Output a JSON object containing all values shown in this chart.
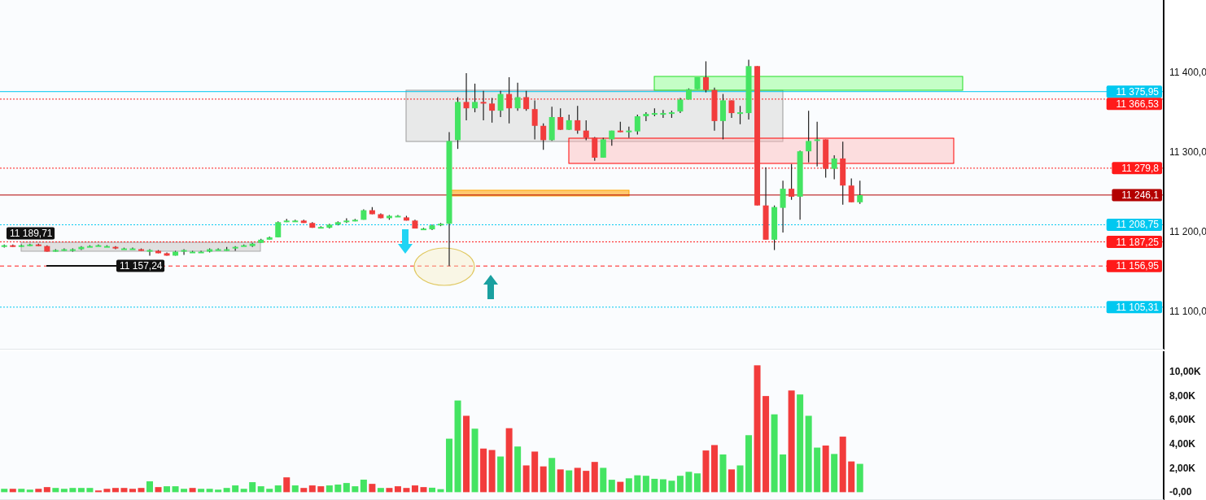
{
  "chart_data": [
    {
      "type": "candlestick",
      "categories": [
        null,
        null,
        null,
        null,
        null,
        null,
        null,
        null,
        null,
        null,
        null,
        null,
        null,
        null,
        null,
        null,
        null,
        null,
        null,
        null,
        null,
        null,
        null,
        null,
        null,
        null,
        null,
        null,
        null,
        null,
        null,
        null,
        null,
        null,
        null,
        null,
        null,
        null,
        null,
        null,
        null,
        null,
        null,
        null,
        null,
        null,
        null,
        null,
        null,
        null,
        null,
        null,
        null,
        null,
        null,
        null,
        null,
        null,
        null,
        null,
        null,
        null,
        null,
        null,
        null,
        null,
        null,
        null,
        null,
        null,
        null,
        null,
        null,
        null,
        null,
        null,
        null,
        null,
        null,
        null,
        null,
        null,
        null,
        null,
        null,
        null,
        null,
        null,
        null,
        null,
        null,
        null,
        null,
        null,
        null,
        null,
        null,
        null,
        null,
        null,
        null,
        null,
        null,
        null,
        null,
        null,
        null,
        null,
        null,
        null,
        null,
        null,
        null,
        null,
        null,
        null,
        null,
        null,
        null,
        null,
        null,
        null,
        null,
        null,
        null,
        null,
        null,
        null,
        null,
        null,
        null,
        null,
        null,
        null,
        null,
        null
      ],
      "ohlc": [
        [
          11182,
          11184,
          11180,
          11183
        ],
        [
          11183,
          11184,
          11181,
          11182
        ],
        [
          11182,
          11184,
          11181,
          11183
        ],
        [
          11183,
          11185,
          11182,
          11184
        ],
        [
          11184,
          11185,
          11182,
          11182
        ],
        [
          11182,
          11183,
          11175,
          11175
        ],
        [
          11176,
          11178,
          11175,
          11177
        ],
        [
          11177,
          11179,
          11176,
          11178
        ],
        [
          11176,
          11179,
          11175,
          11178
        ],
        [
          11178,
          11182,
          11177,
          11181
        ],
        [
          11181,
          11183,
          11181,
          11182
        ],
        [
          11183,
          11184,
          11182,
          11183
        ],
        [
          11182,
          11183,
          11181,
          11182
        ],
        [
          11181,
          11182,
          11178,
          11179
        ],
        [
          11179,
          11180,
          11178,
          11179
        ],
        [
          11179,
          11180,
          11178,
          11179
        ],
        [
          11178,
          11179,
          11176,
          11176
        ],
        [
          11177,
          11178,
          11170,
          11177
        ],
        [
          11176,
          11177,
          11173,
          11173
        ],
        [
          11173,
          11174,
          11170,
          11170
        ],
        [
          11170,
          11176,
          11170,
          11175
        ],
        [
          11177,
          11178,
          11171,
          11177
        ],
        [
          11175,
          11176,
          11174,
          11175
        ],
        [
          11175,
          11176,
          11174,
          11175
        ],
        [
          11175,
          11179,
          11174,
          11178
        ],
        [
          11178,
          11179,
          11177,
          11178
        ],
        [
          11178,
          11181,
          11176,
          11178
        ],
        [
          11179,
          11182,
          11176,
          11181
        ],
        [
          11183,
          11184,
          11182,
          11183
        ],
        [
          11182,
          11186,
          11181,
          11185
        ],
        [
          11186,
          11191,
          11186,
          11190
        ],
        [
          11190,
          11194,
          11190,
          11193
        ],
        [
          11193,
          11213,
          11193,
          11212
        ],
        [
          11214,
          11216,
          11212,
          11214
        ],
        [
          11214,
          11215,
          11213,
          11214
        ],
        [
          11214,
          11215,
          11211,
          11211
        ],
        [
          11211,
          11212,
          11205,
          11205
        ],
        [
          11206,
          11207,
          11205,
          11206
        ],
        [
          11205,
          11210,
          11204,
          11209
        ],
        [
          11209,
          11213,
          11208,
          11212
        ],
        [
          11212,
          11217,
          11211,
          11214
        ],
        [
          11215,
          11216,
          11213,
          11215
        ],
        [
          11215,
          11228,
          11215,
          11227
        ],
        [
          11227,
          11231,
          11222,
          11222
        ],
        [
          11222,
          11223,
          11217,
          11217
        ],
        [
          11217,
          11221,
          11215,
          11220
        ],
        [
          11220,
          11221,
          11219,
          11220
        ],
        [
          11218,
          11220,
          11214,
          11214
        ],
        [
          11214,
          11215,
          11204,
          11204
        ],
        [
          11204,
          11205,
          11203,
          11204
        ],
        [
          11203,
          11209,
          11202,
          11208
        ],
        [
          11208,
          11211,
          11207,
          11210
        ],
        [
          11210,
          11325,
          11157,
          11314
        ],
        [
          11315,
          11369,
          11304,
          11363
        ],
        [
          11363,
          11399,
          11340,
          11355
        ],
        [
          11355,
          11386,
          11350,
          11363
        ],
        [
          11363,
          11377,
          11340,
          11361
        ],
        [
          11361,
          11368,
          11337,
          11352
        ],
        [
          11352,
          11377,
          11344,
          11373
        ],
        [
          11373,
          11394,
          11336,
          11355
        ],
        [
          11355,
          11387,
          11352,
          11369
        ],
        [
          11369,
          11377,
          11352,
          11354
        ],
        [
          11354,
          11365,
          11316,
          11333
        ],
        [
          11333,
          11336,
          11303,
          11315
        ],
        [
          11315,
          11357,
          11314,
          11344
        ],
        [
          11344,
          11355,
          11328,
          11328
        ],
        [
          11328,
          11347,
          11328,
          11340
        ],
        [
          11340,
          11358,
          11323,
          11327
        ],
        [
          11327,
          11340,
          11315,
          11318
        ],
        [
          11318,
          11319,
          11289,
          11293
        ],
        [
          11293,
          11318,
          11293,
          11316
        ],
        [
          11316,
          11327,
          11308,
          11327
        ],
        [
          11327,
          11338,
          11325,
          11325
        ],
        [
          11326,
          11332,
          11318,
          11327
        ],
        [
          11326,
          11347,
          11322,
          11345
        ],
        [
          11345,
          11350,
          11339,
          11348
        ],
        [
          11348,
          11355,
          11345,
          11349
        ],
        [
          11349,
          11353,
          11343,
          11349
        ],
        [
          11348,
          11352,
          11343,
          11350
        ],
        [
          11351,
          11368,
          11349,
          11366
        ],
        [
          11366,
          11380,
          11366,
          11379
        ],
        [
          11379,
          11394,
          11379,
          11394
        ],
        [
          11394,
          11414,
          11375,
          11378
        ],
        [
          11378,
          11381,
          11327,
          11339
        ],
        [
          11339,
          11373,
          11316,
          11365
        ],
        [
          11365,
          11365,
          11343,
          11349
        ],
        [
          11349,
          11358,
          11335,
          11350
        ],
        [
          11349,
          11416,
          11341,
          11408
        ],
        [
          11408,
          11408,
          11233,
          11233
        ],
        [
          11233,
          11281,
          11190,
          11190
        ],
        [
          11190,
          11233,
          11177,
          11231
        ],
        [
          11230,
          11264,
          11199,
          11254
        ],
        [
          11254,
          11285,
          11240,
          11244
        ],
        [
          11244,
          11302,
          11215,
          11301
        ],
        [
          11301,
          11352,
          11287,
          11314
        ],
        [
          11314,
          11338,
          11282,
          11316
        ],
        [
          11316,
          11316,
          11268,
          11279
        ],
        [
          11279,
          11296,
          11266,
          11292
        ],
        [
          11292,
          11313,
          11234,
          11258
        ],
        [
          11258,
          11267,
          11237,
          11237
        ],
        [
          11237,
          11264,
          11235,
          11246
        ],
        null,
        null,
        null,
        null,
        null,
        null,
        null,
        null,
        null,
        null,
        null,
        null,
        null,
        null,
        null,
        null,
        null,
        null,
        null,
        null,
        null,
        null,
        null,
        null,
        null,
        null,
        null,
        null,
        null,
        null,
        null,
        null,
        null,
        null,
        null
      ],
      "colors": [
        "#44e462",
        "#f23c3c",
        "#44e462",
        "#44e462",
        "#f23c3c",
        "#f23c3c",
        "#44e462",
        "#44e462",
        "#44e462",
        "#44e462",
        "#44e462",
        "#44e462",
        "#44e462",
        "#f23c3c",
        "#44e462",
        "#44e462",
        "#f23c3c",
        "#44e462",
        "#f23c3c",
        "#f23c3c",
        "#44e462",
        "#44e462",
        "#44e462",
        "#44e462",
        "#44e462",
        "#44e462",
        "#44e462",
        "#44e462",
        "#44e462",
        "#44e462",
        "#44e462",
        "#44e462",
        "#44e462",
        "#44e462",
        "#44e462",
        "#f23c3c",
        "#f23c3c",
        "#44e462",
        "#44e462",
        "#44e462",
        "#44e462",
        "#44e462",
        "#44e462",
        "#f23c3c",
        "#f23c3c",
        "#44e462",
        "#44e462",
        "#f23c3c",
        "#f23c3c",
        "#44e462",
        "#44e462",
        "#44e462",
        "#44e462",
        "#44e462",
        "#f23c3c",
        "#44e462",
        "#f23c3c",
        "#f23c3c",
        "#44e462",
        "#f23c3c",
        "#44e462",
        "#f23c3c",
        "#f23c3c",
        "#f23c3c",
        "#44e462",
        "#f23c3c",
        "#44e462",
        "#f23c3c",
        "#f23c3c",
        "#f23c3c",
        "#44e462",
        "#44e462",
        "#f23c3c",
        "#44e462",
        "#44e462",
        "#44e462",
        "#44e462",
        "#44e462",
        "#44e462",
        "#44e462",
        "#44e462",
        "#44e462",
        "#f23c3c",
        "#f23c3c",
        "#44e462",
        "#f23c3c",
        "#44e462",
        "#44e462",
        "#f23c3c",
        "#f23c3c",
        "#44e462",
        "#44e462",
        "#f23c3c",
        "#44e462",
        "#44e462",
        "#44e462",
        "#f23c3c",
        "#44e462",
        "#f23c3c",
        "#f23c3c",
        "#44e462",
        null,
        null,
        null,
        null,
        null,
        null,
        null,
        null,
        null,
        null,
        null,
        null,
        null,
        null,
        null,
        null,
        null,
        null,
        null,
        null,
        null,
        null,
        null,
        null,
        null,
        null,
        null,
        null,
        null,
        null,
        null,
        null,
        null,
        null,
        null
      ],
      "ylim": [
        11052,
        11491
      ],
      "yticks": [
        {
          "value": 11100,
          "label": "11 100,0"
        },
        {
          "value": 11200,
          "label": "11 200,0"
        },
        {
          "value": 11300,
          "label": "11 300,0"
        },
        {
          "value": 11400,
          "label": "11 400,0"
        }
      ],
      "ref_lines": [
        {
          "axis": "y",
          "value": 11375.95,
          "label": "11 375,95",
          "color": "#00c8f0",
          "line_style": "solid"
        },
        {
          "axis": "y",
          "value": 11366.53,
          "label": "11 366,53",
          "color": "#ff1a1a",
          "line_style": "dotted"
        },
        {
          "axis": "y",
          "value": 11279.8,
          "label": "11 279,8",
          "color": "#ff1a1a",
          "line_style": "dotted"
        },
        {
          "axis": "y",
          "value": 11246.1,
          "label": "11 246,1",
          "color": "#b30000",
          "line_style": "solid"
        },
        {
          "axis": "y",
          "value": 11208.75,
          "label": "11 208,75",
          "color": "#00c8f0",
          "line_style": "dotted"
        },
        {
          "axis": "y",
          "value": 11187.25,
          "label": "11 187,25",
          "color": "#ff1a1a",
          "line_style": "dotted"
        },
        {
          "axis": "y",
          "value": 11156.95,
          "label": "11 156,95",
          "color": "#ff1a1a",
          "line_style": "dashed"
        },
        {
          "axis": "y",
          "value": 11105.31,
          "label": "11 105,31",
          "color": "#00c8f0",
          "line_style": "dotted"
        }
      ],
      "annotations": [
        {
          "text": "11 189,71",
          "y": 11189.71
        },
        {
          "text": "11 157,24",
          "y": 11157.24
        }
      ]
    },
    {
      "type": "bar",
      "categories": [
        null,
        null,
        null,
        null,
        null,
        null,
        null,
        null,
        null,
        null,
        null,
        null,
        null,
        null,
        null,
        null,
        null,
        null,
        null,
        null,
        null,
        null,
        null,
        null,
        null,
        null,
        null,
        null,
        null,
        null,
        null,
        null,
        null,
        null,
        null,
        null,
        null,
        null,
        null,
        null,
        null,
        null,
        null,
        null,
        null,
        null,
        null,
        null,
        null,
        null,
        null,
        null,
        null,
        null,
        null,
        null,
        null,
        null,
        null,
        null,
        null,
        null,
        null,
        null,
        null,
        null,
        null,
        null,
        null,
        null,
        null,
        null,
        null,
        null,
        null,
        null,
        null,
        null,
        null,
        null,
        null,
        null,
        null,
        null,
        null,
        null,
        null,
        null,
        null,
        null,
        null,
        null,
        null,
        null,
        null,
        null,
        null,
        null,
        null,
        null,
        null,
        null,
        null,
        null,
        null,
        null,
        null,
        null,
        null,
        null,
        null,
        null,
        null,
        null,
        null,
        null,
        null,
        null,
        null,
        null,
        null,
        null,
        null,
        null,
        null,
        null,
        null,
        null,
        null,
        null,
        null,
        null,
        null,
        null,
        null,
        null
      ],
      "values": [
        0.28,
        0.28,
        0.28,
        0.21,
        0.28,
        0.42,
        0.35,
        0.28,
        0.35,
        0.35,
        0.35,
        0.14,
        0.28,
        0.35,
        0.35,
        0.28,
        0.35,
        0.9,
        0.42,
        0.49,
        0.49,
        0.28,
        0.35,
        0.28,
        0.28,
        0.21,
        0.35,
        0.56,
        0.28,
        0.83,
        0.49,
        0.28,
        0.56,
        1.23,
        0.56,
        0.35,
        0.56,
        0.49,
        0.56,
        0.63,
        0.76,
        0.49,
        1.04,
        0.69,
        0.35,
        0.35,
        0.49,
        0.35,
        0.56,
        0.42,
        0.37,
        0.25,
        4.44,
        7.61,
        6.34,
        5.27,
        3.62,
        3.5,
        2.96,
        5.31,
        3.79,
        2.22,
        3.37,
        2.14,
        2.84,
        1.89,
        1.81,
        2.02,
        1.77,
        2.51,
        2.02,
        1.03,
        0.86,
        1.15,
        1.4,
        1.36,
        1.11,
        1.07,
        0.95,
        1.36,
        1.69,
        1.56,
        3.46,
        3.91,
        3.13,
        1.89,
        2.22,
        4.73,
        10.53,
        7.98,
        6.46,
        3.13,
        8.44,
        8.11,
        6.34,
        3.7,
        3.87,
        3.17,
        4.61,
        2.55,
        2.35,
        null,
        null,
        null,
        null,
        null,
        null,
        null,
        null,
        null,
        null,
        null,
        null,
        null,
        null,
        null,
        null,
        null,
        null,
        null,
        null,
        null,
        null,
        null,
        null,
        null,
        null,
        null,
        null,
        null,
        null,
        null,
        null,
        null,
        null,
        null
      ],
      "colors": [
        "#44e462",
        "#f23c3c",
        "#44e462",
        "#44e462",
        "#f23c3c",
        "#f23c3c",
        "#44e462",
        "#44e462",
        "#44e462",
        "#44e462",
        "#44e462",
        "#f23c3c",
        "#f23c3c",
        "#f23c3c",
        "#f23c3c",
        "#f23c3c",
        "#f23c3c",
        "#44e462",
        "#f23c3c",
        "#44e462",
        "#44e462",
        "#44e462",
        "#f23c3c",
        "#44e462",
        "#44e462",
        "#44e462",
        "#44e462",
        "#44e462",
        "#44e462",
        "#44e462",
        "#44e462",
        "#44e462",
        "#44e462",
        "#f23c3c",
        "#44e462",
        "#f23c3c",
        "#f23c3c",
        "#f23c3c",
        "#44e462",
        "#44e462",
        "#44e462",
        "#44e462",
        "#44e462",
        "#f23c3c",
        "#44e462",
        "#f23c3c",
        "#f23c3c",
        "#f23c3c",
        "#f23c3c",
        "#f23c3c",
        "#44e462",
        "#44e462",
        "#44e462",
        "#44e462",
        "#f23c3c",
        "#44e462",
        "#f23c3c",
        "#f23c3c",
        "#44e462",
        "#f23c3c",
        "#44e462",
        "#f23c3c",
        "#f23c3c",
        "#f23c3c",
        "#44e462",
        "#f23c3c",
        "#44e462",
        "#f23c3c",
        "#f23c3c",
        "#f23c3c",
        "#44e462",
        "#44e462",
        "#f23c3c",
        "#44e462",
        "#44e462",
        "#44e462",
        "#44e462",
        "#44e462",
        "#44e462",
        "#44e462",
        "#44e462",
        "#44e462",
        "#f23c3c",
        "#f23c3c",
        "#44e462",
        "#f23c3c",
        "#44e462",
        "#44e462",
        "#f23c3c",
        "#f23c3c",
        "#44e462",
        "#44e462",
        "#f23c3c",
        "#44e462",
        "#44e462",
        "#44e462",
        "#f23c3c",
        "#44e462",
        "#f23c3c",
        "#f23c3c",
        "#44e462",
        null,
        null,
        null,
        null,
        null,
        null,
        null,
        null,
        null,
        null,
        null,
        null,
        null,
        null,
        null,
        null,
        null,
        null,
        null,
        null,
        null,
        null,
        null,
        null,
        null,
        null,
        null,
        null,
        null,
        null,
        null,
        null,
        null,
        null,
        null
      ],
      "ylim": [
        -0.65,
        11.7
      ],
      "yticks": [
        {
          "value": 0,
          "label": "-0,00"
        },
        {
          "value": 2,
          "label": "2,00K"
        },
        {
          "value": 4,
          "label": "4,00K"
        },
        {
          "value": 6,
          "label": "6,00K"
        },
        {
          "value": 8,
          "label": "8,00K"
        },
        {
          "value": 10,
          "label": "10,00K"
        }
      ]
    }
  ]
}
